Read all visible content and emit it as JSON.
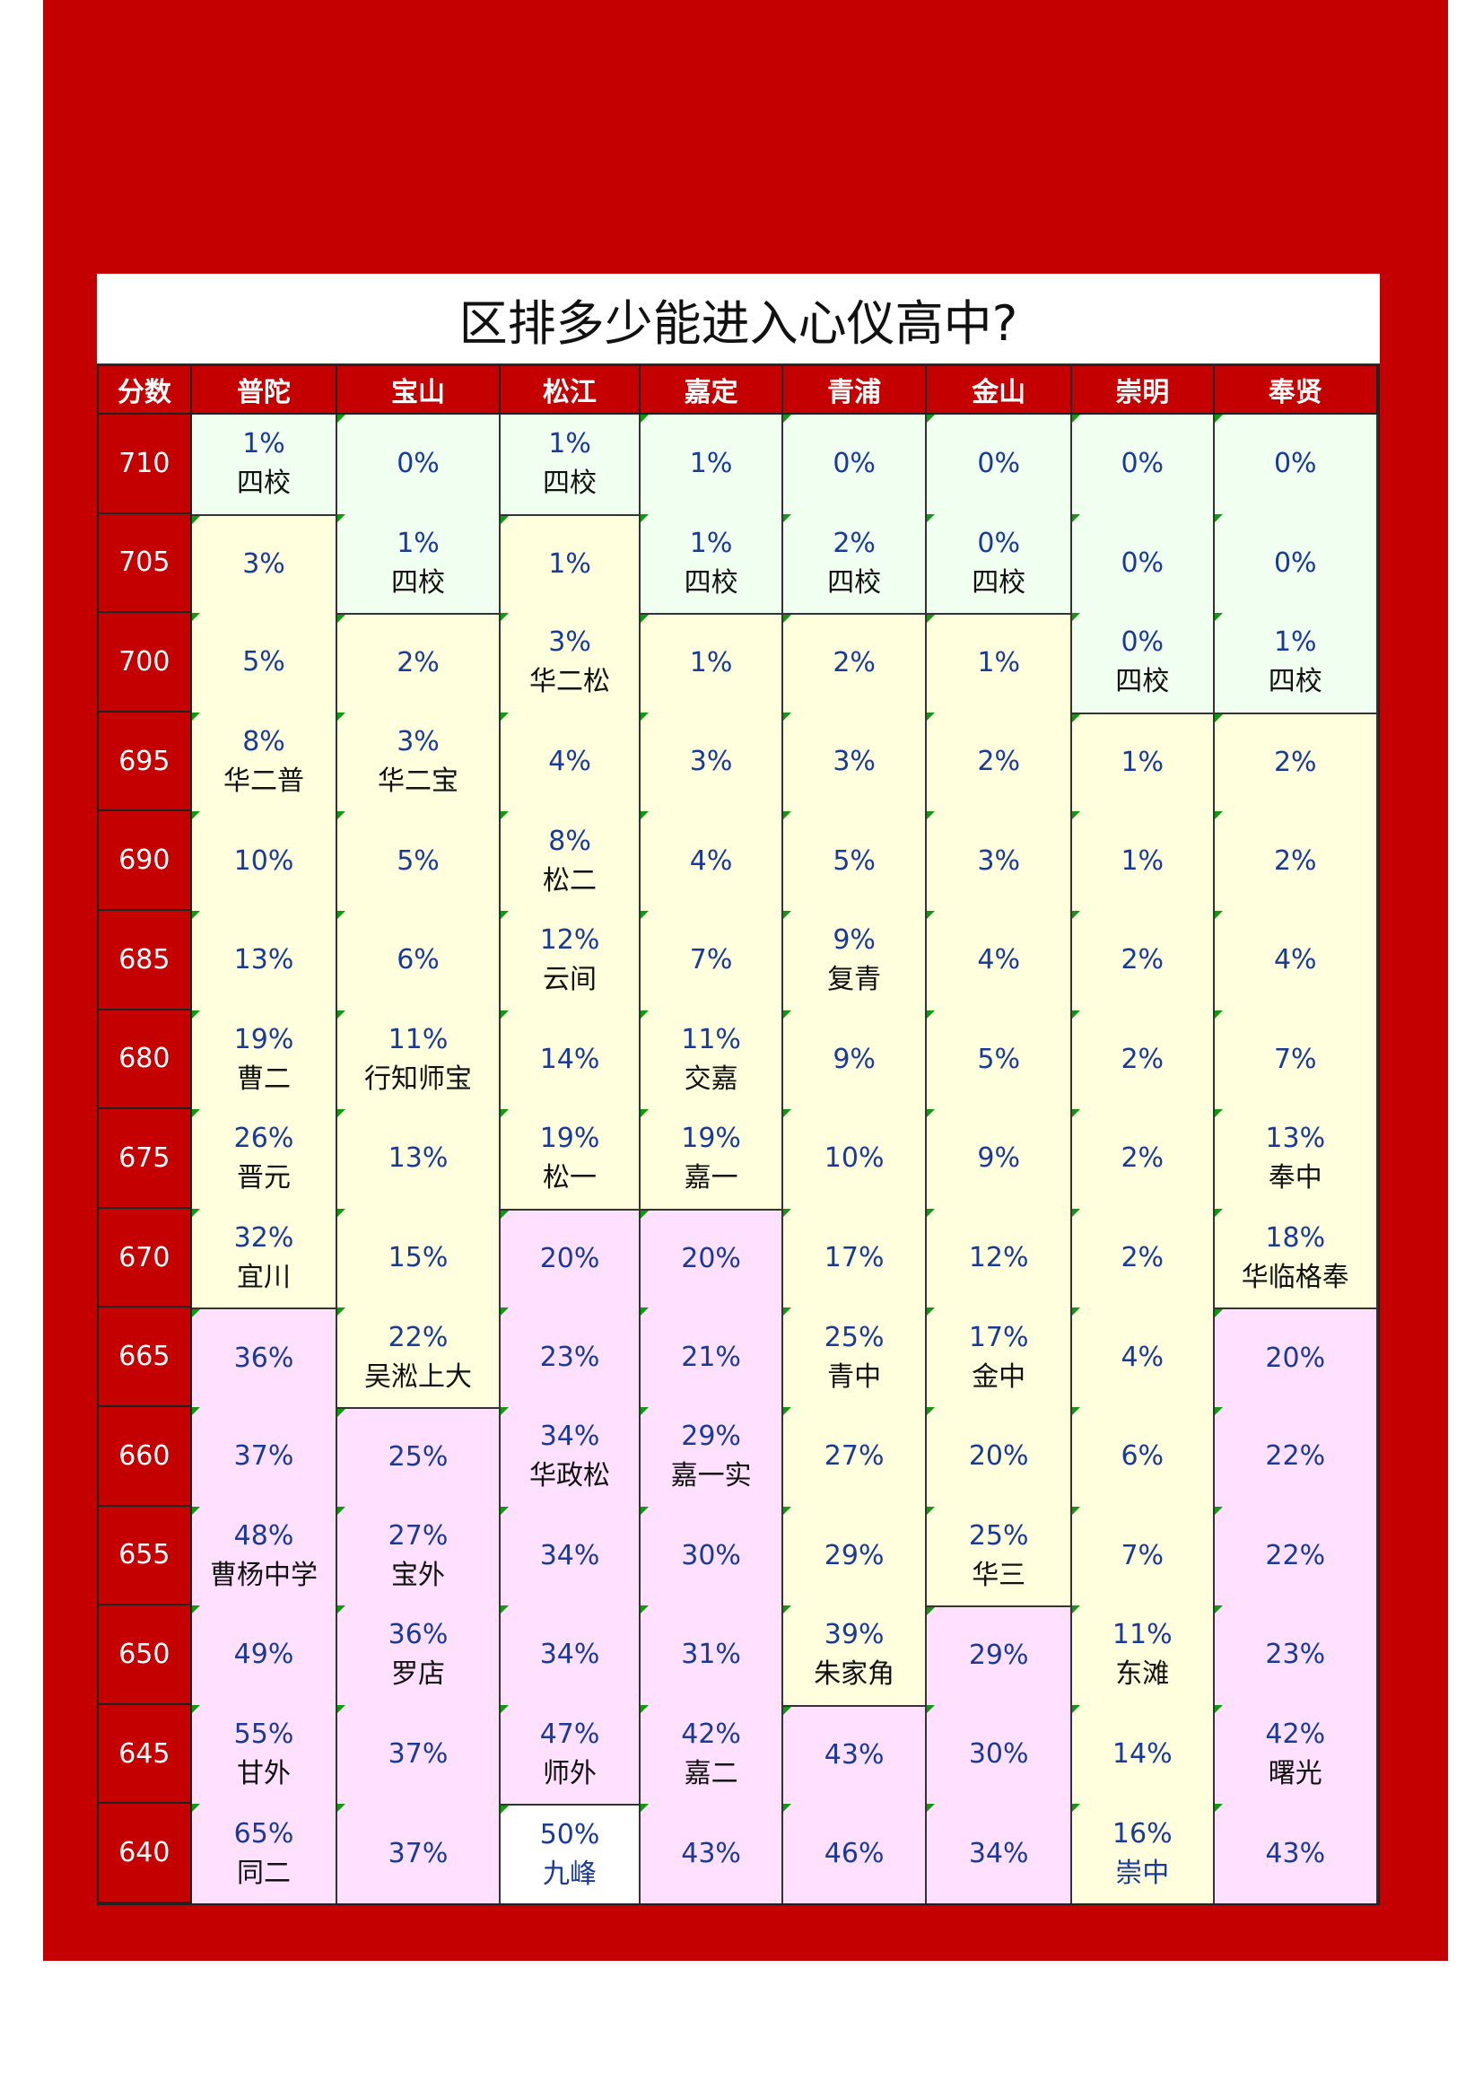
{
  "title": "区排多少能进入心仪高中?",
  "colors": {
    "background": "#c40000",
    "tier_green": "#f0fff0",
    "tier_yellow": "#ffffdd",
    "tier_pink": "#ffe0ff",
    "tier_white": "#ffffff",
    "percent_text": "#1a3a9a"
  },
  "header": {
    "score_label": "分数",
    "districts": [
      "普陀",
      "宝山",
      "松江",
      "嘉定",
      "青浦",
      "金山",
      "崇明",
      "奉贤"
    ]
  },
  "scores": [
    "710",
    "705",
    "700",
    "695",
    "690",
    "685",
    "680",
    "675",
    "670",
    "665",
    "660",
    "655",
    "650",
    "645",
    "640"
  ],
  "columns": [
    {
      "district": "普陀",
      "cells": [
        {
          "pct": "1%",
          "name": "四校",
          "tier": "g"
        },
        {
          "pct": "3%",
          "tier": "y"
        },
        {
          "pct": "5%",
          "tier": "y"
        },
        {
          "pct": "8%",
          "name": "华二普",
          "tier": "y"
        },
        {
          "pct": "10%",
          "tier": "y"
        },
        {
          "pct": "13%",
          "tier": "y"
        },
        {
          "pct": "19%",
          "name": "曹二",
          "tier": "y"
        },
        {
          "pct": "26%",
          "name": "晋元",
          "tier": "y"
        },
        {
          "pct": "32%",
          "name": "宜川",
          "tier": "y"
        },
        {
          "pct": "36%",
          "tier": "p"
        },
        {
          "pct": "37%",
          "tier": "p"
        },
        {
          "pct": "48%",
          "name": "曹杨中学",
          "tier": "p"
        },
        {
          "pct": "49%",
          "tier": "p"
        },
        {
          "pct": "55%",
          "name": "甘外",
          "tier": "p"
        },
        {
          "pct": "65%",
          "name": "同二",
          "tier": "p"
        }
      ]
    },
    {
      "district": "宝山",
      "cells": [
        {
          "pct": "0%",
          "tier": "g"
        },
        {
          "pct": "1%",
          "name": "四校",
          "tier": "g"
        },
        {
          "pct": "2%",
          "tier": "y"
        },
        {
          "pct": "3%",
          "name": "华二宝",
          "tier": "y"
        },
        {
          "pct": "5%",
          "tier": "y"
        },
        {
          "pct": "6%",
          "tier": "y"
        },
        {
          "pct": "11%",
          "name": "行知师宝",
          "tier": "y"
        },
        {
          "pct": "13%",
          "tier": "y"
        },
        {
          "pct": "15%",
          "tier": "y"
        },
        {
          "pct": "22%",
          "name": "吴淞上大",
          "tier": "y"
        },
        {
          "pct": "25%",
          "tier": "p"
        },
        {
          "pct": "27%",
          "name": "宝外",
          "tier": "p"
        },
        {
          "pct": "36%",
          "name": "罗店",
          "tier": "p"
        },
        {
          "pct": "37%",
          "tier": "p"
        },
        {
          "pct": "37%",
          "tier": "p"
        }
      ]
    },
    {
      "district": "松江",
      "cells": [
        {
          "pct": "1%",
          "name": "四校",
          "tier": "g"
        },
        {
          "pct": "1%",
          "tier": "y"
        },
        {
          "pct": "3%",
          "name": "华二松",
          "tier": "y"
        },
        {
          "pct": "4%",
          "tier": "y"
        },
        {
          "pct": "8%",
          "name": "松二",
          "tier": "y"
        },
        {
          "pct": "12%",
          "name": "云间",
          "tier": "y"
        },
        {
          "pct": "14%",
          "tier": "y"
        },
        {
          "pct": "19%",
          "name": "松一",
          "tier": "y"
        },
        {
          "pct": "20%",
          "tier": "p"
        },
        {
          "pct": "23%",
          "tier": "p"
        },
        {
          "pct": "34%",
          "name": "华政松",
          "tier": "p"
        },
        {
          "pct": "34%",
          "tier": "p"
        },
        {
          "pct": "34%",
          "tier": "p"
        },
        {
          "pct": "47%",
          "name": "师外",
          "tier": "p"
        },
        {
          "pct": "50%",
          "name": "九峰",
          "tier": "w",
          "blue": true
        }
      ]
    },
    {
      "district": "嘉定",
      "cells": [
        {
          "pct": "1%",
          "tier": "g"
        },
        {
          "pct": "1%",
          "name": "四校",
          "tier": "g"
        },
        {
          "pct": "1%",
          "tier": "y"
        },
        {
          "pct": "3%",
          "tier": "y"
        },
        {
          "pct": "4%",
          "tier": "y"
        },
        {
          "pct": "7%",
          "tier": "y"
        },
        {
          "pct": "11%",
          "name": "交嘉",
          "tier": "y"
        },
        {
          "pct": "19%",
          "name": "嘉一",
          "tier": "y"
        },
        {
          "pct": "20%",
          "tier": "p"
        },
        {
          "pct": "21%",
          "tier": "p"
        },
        {
          "pct": "29%",
          "name": "嘉一实",
          "tier": "p"
        },
        {
          "pct": "30%",
          "tier": "p"
        },
        {
          "pct": "31%",
          "tier": "p"
        },
        {
          "pct": "42%",
          "name": "嘉二",
          "tier": "p"
        },
        {
          "pct": "43%",
          "tier": "p"
        }
      ]
    },
    {
      "district": "青浦",
      "cells": [
        {
          "pct": "0%",
          "tier": "g"
        },
        {
          "pct": "2%",
          "name": "四校",
          "tier": "g"
        },
        {
          "pct": "2%",
          "tier": "y"
        },
        {
          "pct": "3%",
          "tier": "y"
        },
        {
          "pct": "5%",
          "tier": "y"
        },
        {
          "pct": "9%",
          "name": "复青",
          "tier": "y"
        },
        {
          "pct": "9%",
          "tier": "y"
        },
        {
          "pct": "10%",
          "tier": "y"
        },
        {
          "pct": "17%",
          "tier": "y"
        },
        {
          "pct": "25%",
          "name": "青中",
          "tier": "y"
        },
        {
          "pct": "27%",
          "tier": "y"
        },
        {
          "pct": "29%",
          "tier": "y"
        },
        {
          "pct": "39%",
          "name": "朱家角",
          "tier": "y"
        },
        {
          "pct": "43%",
          "tier": "p"
        },
        {
          "pct": "46%",
          "tier": "p"
        }
      ]
    },
    {
      "district": "金山",
      "cells": [
        {
          "pct": "0%",
          "tier": "g"
        },
        {
          "pct": "0%",
          "name": "四校",
          "tier": "g"
        },
        {
          "pct": "1%",
          "tier": "y"
        },
        {
          "pct": "2%",
          "tier": "y"
        },
        {
          "pct": "3%",
          "tier": "y"
        },
        {
          "pct": "4%",
          "tier": "y"
        },
        {
          "pct": "5%",
          "tier": "y"
        },
        {
          "pct": "9%",
          "tier": "y"
        },
        {
          "pct": "12%",
          "tier": "y"
        },
        {
          "pct": "17%",
          "name": "金中",
          "tier": "y"
        },
        {
          "pct": "20%",
          "tier": "y"
        },
        {
          "pct": "25%",
          "name": "华三",
          "tier": "y"
        },
        {
          "pct": "29%",
          "tier": "p"
        },
        {
          "pct": "30%",
          "tier": "p"
        },
        {
          "pct": "34%",
          "tier": "p"
        }
      ]
    },
    {
      "district": "崇明",
      "cells": [
        {
          "pct": "0%",
          "tier": "g"
        },
        {
          "pct": "0%",
          "tier": "g"
        },
        {
          "pct": "0%",
          "name": "四校",
          "tier": "g"
        },
        {
          "pct": "1%",
          "tier": "y"
        },
        {
          "pct": "1%",
          "tier": "y"
        },
        {
          "pct": "2%",
          "tier": "y"
        },
        {
          "pct": "2%",
          "tier": "y"
        },
        {
          "pct": "2%",
          "tier": "y"
        },
        {
          "pct": "2%",
          "tier": "y"
        },
        {
          "pct": "4%",
          "tier": "y"
        },
        {
          "pct": "6%",
          "tier": "y"
        },
        {
          "pct": "7%",
          "tier": "y"
        },
        {
          "pct": "11%",
          "name": "东滩",
          "tier": "y"
        },
        {
          "pct": "14%",
          "tier": "y"
        },
        {
          "pct": "16%",
          "name": "崇中",
          "tier": "y",
          "blue": true
        }
      ]
    },
    {
      "district": "奉贤",
      "cells": [
        {
          "pct": "0%",
          "tier": "g"
        },
        {
          "pct": "0%",
          "tier": "g"
        },
        {
          "pct": "1%",
          "name": "四校",
          "tier": "g"
        },
        {
          "pct": "2%",
          "tier": "y"
        },
        {
          "pct": "2%",
          "tier": "y"
        },
        {
          "pct": "4%",
          "tier": "y"
        },
        {
          "pct": "7%",
          "tier": "y"
        },
        {
          "pct": "13%",
          "name": "奉中",
          "tier": "y"
        },
        {
          "pct": "18%",
          "name": "华临格奉",
          "tier": "y"
        },
        {
          "pct": "20%",
          "tier": "p"
        },
        {
          "pct": "22%",
          "tier": "p"
        },
        {
          "pct": "22%",
          "tier": "p"
        },
        {
          "pct": "23%",
          "tier": "p"
        },
        {
          "pct": "42%",
          "name": "曙光",
          "tier": "p"
        },
        {
          "pct": "43%",
          "tier": "p"
        }
      ]
    }
  ]
}
